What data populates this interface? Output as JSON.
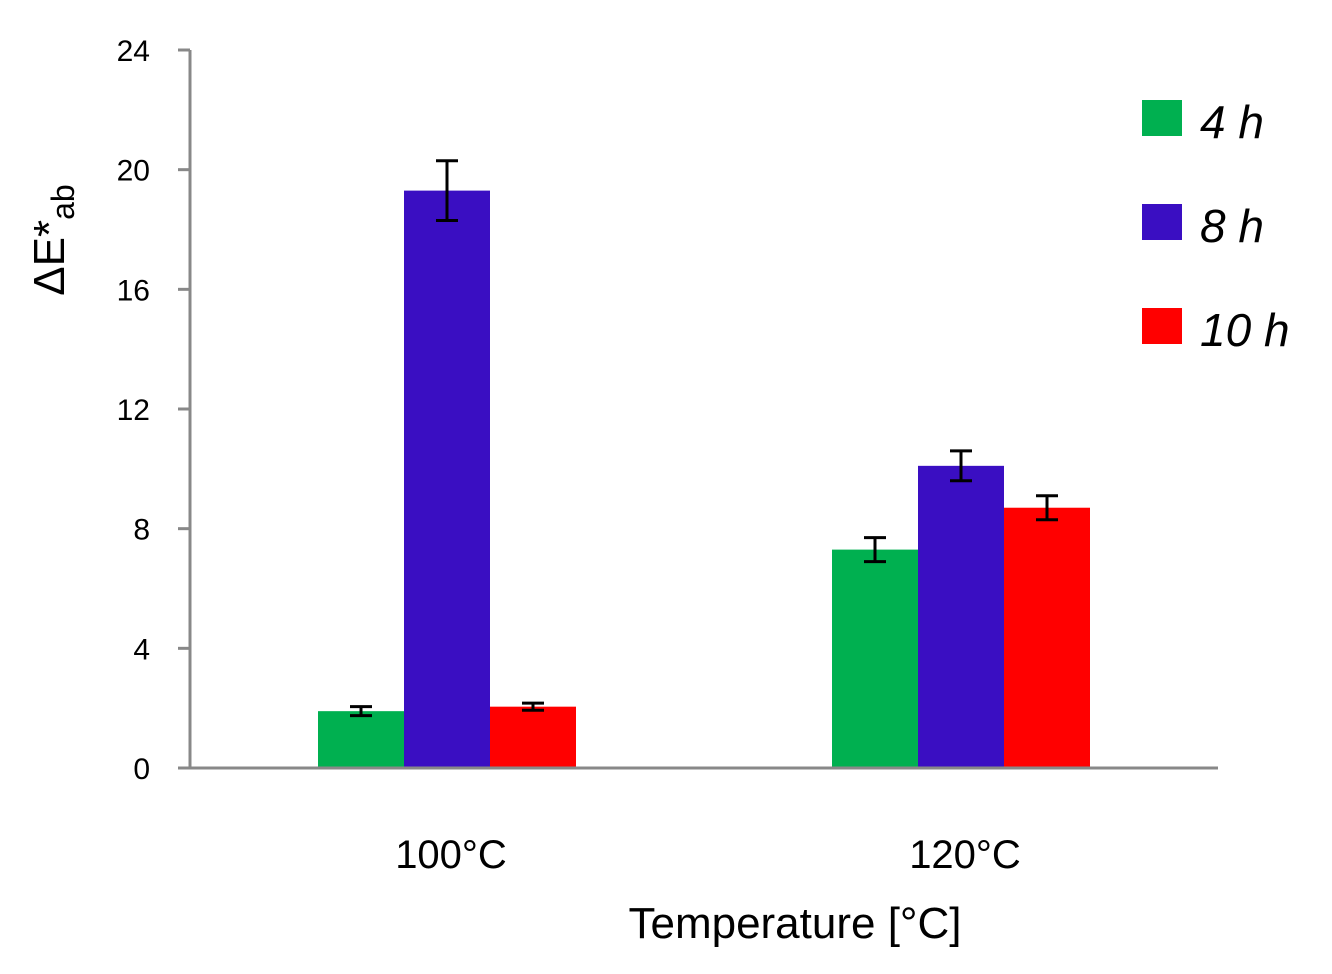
{
  "chart_data": {
    "type": "bar",
    "title": "",
    "xlabel": "Temperature [°C]",
    "ylabel": {
      "main": "ΔE*",
      "subscript": "ab"
    },
    "categories": [
      "100°C",
      "120°C"
    ],
    "ylim": [
      0,
      24
    ],
    "yticks": [
      "0",
      "4",
      "8",
      "12",
      "16",
      "20",
      "24"
    ],
    "grid": false,
    "legend_position": "top-right",
    "series": [
      {
        "name": "4 h",
        "color": "#00b050",
        "values": [
          1.9,
          7.3
        ],
        "errors": [
          0.15,
          0.4
        ]
      },
      {
        "name": "8 h",
        "color": "#3a0ec2",
        "values": [
          19.3,
          10.1
        ],
        "errors": [
          1.0,
          0.5
        ]
      },
      {
        "name": "10 h",
        "color": "#ff0000",
        "values": [
          2.05,
          8.7
        ],
        "errors": [
          0.12,
          0.4
        ]
      }
    ]
  }
}
